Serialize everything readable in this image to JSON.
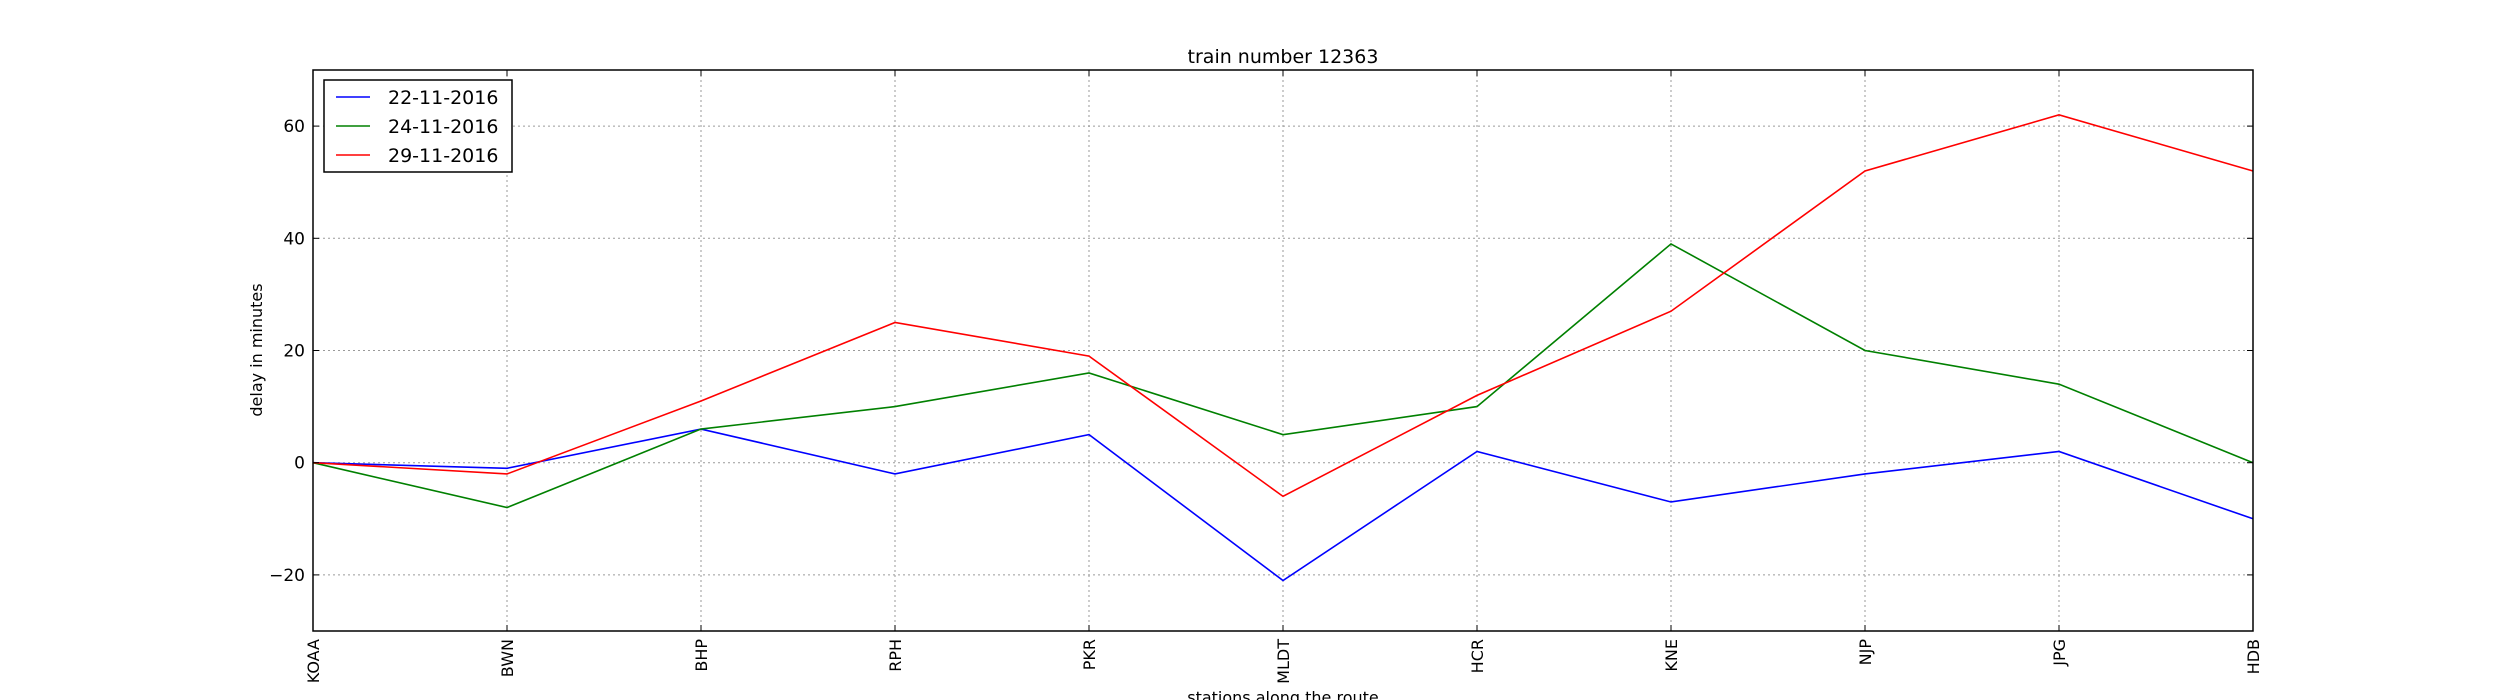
{
  "chart_data": {
    "type": "line",
    "title": "train number 12363",
    "xlabel": "stations along the route",
    "ylabel": "delay in minutes",
    "categories": [
      "KOAA",
      "BWN",
      "BHP",
      "RPH",
      "PKR",
      "MLDT",
      "HCR",
      "KNE",
      "NJP",
      "JPG",
      "HDB"
    ],
    "ylim": [
      -30,
      70
    ],
    "yticks": [
      -20,
      0,
      20,
      40,
      60
    ],
    "ytick_labels": [
      "−20",
      "0",
      "20",
      "40",
      "60"
    ],
    "grid": true,
    "legend_position": "top-left",
    "series": [
      {
        "name": "22-11-2016",
        "color": "#0000ff",
        "values": [
          0,
          -1,
          6,
          -2,
          5,
          -21,
          2,
          -7,
          -2,
          2,
          -10
        ]
      },
      {
        "name": "24-11-2016",
        "color": "#008000",
        "values": [
          0,
          -8,
          6,
          10,
          16,
          5,
          10,
          39,
          20,
          14,
          0
        ]
      },
      {
        "name": "29-11-2016",
        "color": "#ff0000",
        "values": [
          0,
          -2,
          11,
          25,
          19,
          -6,
          12,
          27,
          52,
          62,
          52
        ]
      }
    ]
  }
}
